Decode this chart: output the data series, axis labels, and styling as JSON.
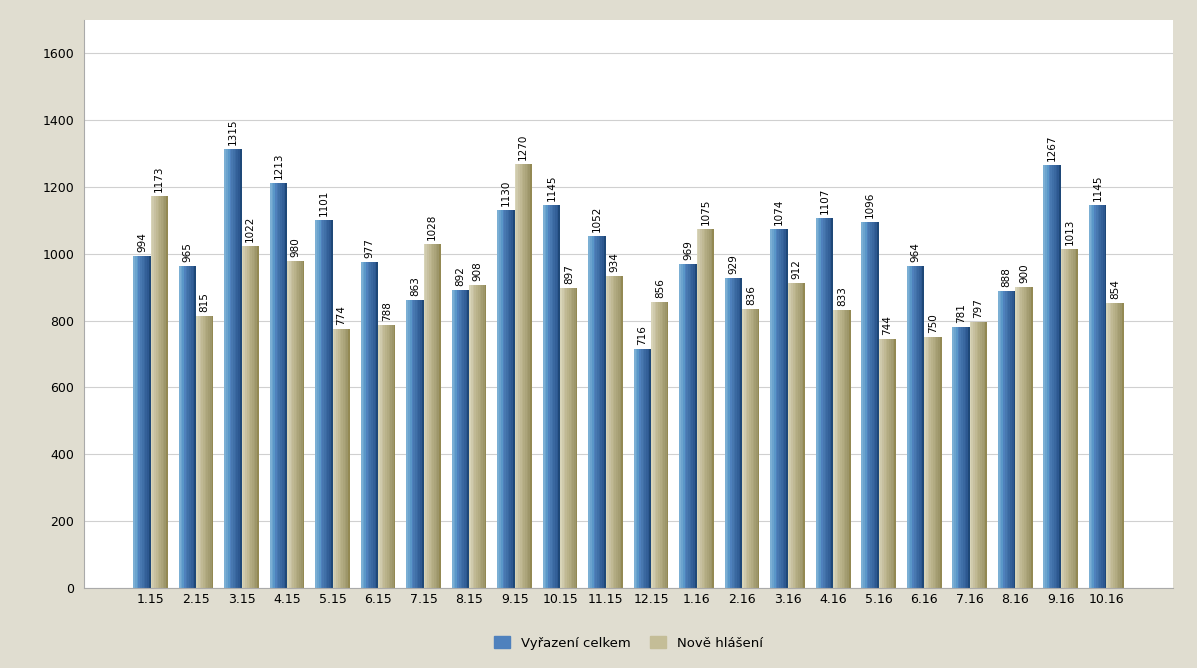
{
  "categories": [
    "1.15",
    "2.15",
    "3.15",
    "4.15",
    "5.15",
    "6.15",
    "7.15",
    "8.15",
    "9.15",
    "10.15",
    "11.15",
    "12.15",
    "1.16",
    "2.16",
    "3.16",
    "4.16",
    "5.16",
    "6.16",
    "7.16",
    "8.16",
    "9.16",
    "10.16"
  ],
  "series1_name": "Vyřazení celkem",
  "series2_name": "Nově hlášení",
  "series1_values": [
    994,
    965,
    1315,
    1213,
    1101,
    977,
    863,
    892,
    1130,
    1145,
    1052,
    716,
    969,
    929,
    1074,
    1107,
    1096,
    964,
    781,
    888,
    1267,
    1145
  ],
  "series2_values": [
    1173,
    815,
    1022,
    980,
    774,
    788,
    1028,
    908,
    1270,
    897,
    934,
    856,
    1075,
    836,
    912,
    833,
    744,
    750,
    797,
    900,
    1013,
    854
  ],
  "bar_color1_main": "#4F81BD",
  "bar_color1_light": "#95B3D7",
  "bar_color1_dark": "#17375E",
  "bar_color2_main": "#C4BD97",
  "bar_color2_light": "#DDD9C3",
  "bar_color2_dark": "#938953",
  "ylim": [
    0,
    1700
  ],
  "yticks": [
    0,
    200,
    400,
    600,
    800,
    1000,
    1200,
    1400,
    1600
  ],
  "background_color": "#E0DDD0",
  "plot_background": "#FFFFFF",
  "grid_color": "#FFFFFF",
  "label_fontsize": 7.5,
  "tick_fontsize": 9,
  "legend_fontsize": 9.5
}
